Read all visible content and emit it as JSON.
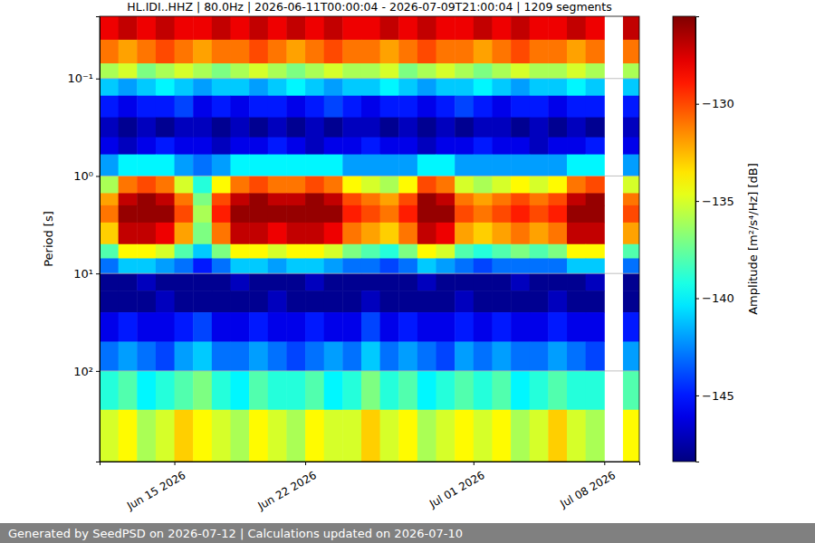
{
  "chart_data": {
    "type": "heatmap",
    "title": "HL.IDI..HHZ | 80.0Hz | 2026-06-11T00:00:04 - 2026-07-09T21:00:04 | 1209 segments",
    "footer": "Generated by SeedPSD on 2026-07-12 | Calculations updated on 2026-07-10",
    "y_label": "Period [s]",
    "colorbar_label": "Amplitude [m²/s⁴/Hz] [dB]",
    "log": "y",
    "grid": true,
    "xlim": [
      "2026-06-11T00:00:04",
      "2026-07-09T21:00:04"
    ],
    "xticks": [
      {
        "value": "2026-06-15",
        "label": "Jun 15 2026"
      },
      {
        "value": "2026-06-22",
        "label": "Jun 22 2026"
      },
      {
        "value": "2026-07-01",
        "label": "Jul 01 2026"
      },
      {
        "value": "2026-07-08",
        "label": "Jul 08 2026"
      }
    ],
    "ylim": [
      0.023,
      850
    ],
    "yticks": [
      {
        "value": 0.1,
        "label": "10⁻¹"
      },
      {
        "value": 1,
        "label": "10⁰"
      },
      {
        "value": 10,
        "label": "10¹"
      },
      {
        "value": 100,
        "label": "10²"
      }
    ],
    "colorbar_range": [
      -148.4,
      -125.5
    ],
    "colorbar_ticks": [
      {
        "value": -145,
        "label": "−145"
      },
      {
        "value": -140,
        "label": "−140"
      },
      {
        "value": -135,
        "label": "−135"
      },
      {
        "value": -130,
        "label": "−130"
      }
    ],
    "x": [
      "2026-06-11",
      "2026-06-12",
      "2026-06-13",
      "2026-06-14",
      "2026-06-15",
      "2026-06-16",
      "2026-06-17",
      "2026-06-18",
      "2026-06-19",
      "2026-06-20",
      "2026-06-21",
      "2026-06-22",
      "2026-06-23",
      "2026-06-24",
      "2026-06-25",
      "2026-06-26",
      "2026-06-27",
      "2026-06-28",
      "2026-06-29",
      "2026-06-30",
      "2026-07-01",
      "2026-07-02",
      "2026-07-03",
      "2026-07-04",
      "2026-07-05",
      "2026-07-06",
      "2026-07-07",
      "2026-07-08",
      "2026-07-09"
    ],
    "y": [
      0.023,
      0.04,
      0.07,
      0.1,
      0.15,
      0.25,
      0.4,
      0.6,
      1,
      1.5,
      2,
      3,
      5,
      7,
      10,
      15,
      25,
      50,
      100,
      250,
      850
    ],
    "cells": [
      [
        -128,
        -127,
        -128,
        -127,
        -128,
        -128,
        -127,
        -128,
        -127,
        -128,
        -127,
        -128,
        -127,
        -128,
        -128,
        -127,
        -128,
        -127,
        -128,
        -128,
        -127,
        -128,
        -127,
        -128,
        -128,
        -127,
        -128,
        null,
        -127
      ],
      [
        -131,
        -132,
        -131,
        -130,
        -131,
        -132,
        -131,
        -131,
        -130,
        -131,
        -132,
        -131,
        -130,
        -131,
        -131,
        -132,
        -131,
        -130,
        -131,
        -131,
        -132,
        -131,
        -130,
        -131,
        -131,
        -132,
        -131,
        null,
        -131
      ],
      [
        -136,
        -135,
        -137,
        -136,
        -135,
        -136,
        -137,
        -136,
        -135,
        -136,
        -137,
        -136,
        -135,
        -136,
        -136,
        -135,
        -137,
        -136,
        -135,
        -136,
        -137,
        -136,
        -135,
        -136,
        -136,
        -135,
        -136,
        null,
        -136
      ],
      [
        -141,
        -142,
        -141,
        -140,
        -141,
        -142,
        -141,
        -141,
        -142,
        -141,
        -140,
        -141,
        -142,
        -141,
        -141,
        -140,
        -141,
        -142,
        -141,
        -141,
        -140,
        -141,
        -142,
        -141,
        -141,
        -140,
        -141,
        null,
        -141
      ],
      [
        -145,
        -146,
        -145,
        -145,
        -144,
        -146,
        -145,
        -146,
        -145,
        -145,
        -146,
        -145,
        -144,
        -145,
        -146,
        -145,
        -145,
        -146,
        -145,
        -144,
        -145,
        -146,
        -145,
        -145,
        -146,
        -145,
        -145,
        null,
        -145
      ],
      [
        -147,
        -148,
        -147,
        -148,
        -147,
        -147,
        -148,
        -147,
        -148,
        -147,
        -148,
        -147,
        -148,
        -147,
        -147,
        -148,
        -147,
        -148,
        -147,
        -148,
        -147,
        -147,
        -148,
        -147,
        -148,
        -147,
        -148,
        null,
        -147
      ],
      [
        -146,
        -147,
        -146,
        -145,
        -146,
        -146,
        -147,
        -146,
        -146,
        -145,
        -146,
        -147,
        -146,
        -146,
        -145,
        -146,
        -146,
        -147,
        -146,
        -146,
        -145,
        -146,
        -146,
        -147,
        -146,
        -146,
        -145,
        null,
        -146
      ],
      [
        -142,
        -140,
        -140,
        -140,
        -142,
        -143,
        -142,
        -140,
        -140,
        -140,
        -140,
        -140,
        -140,
        -142,
        -142,
        -142,
        -142,
        -140,
        -140,
        -142,
        -142,
        -142,
        -142,
        -142,
        -142,
        -140,
        -140,
        null,
        -142
      ],
      [
        -136,
        -131,
        -130,
        -131,
        -135,
        -139,
        -134,
        -131,
        -130,
        -131,
        -131,
        -130,
        -131,
        -134,
        -135,
        -136,
        -134,
        -130,
        -131,
        -135,
        -136,
        -135,
        -134,
        -135,
        -134,
        -131,
        -130,
        null,
        -135
      ],
      [
        -132,
        -127,
        -126,
        -127,
        -131,
        -137,
        -130,
        -127,
        -126,
        -127,
        -127,
        -126,
        -127,
        -130,
        -131,
        -132,
        -130,
        -126,
        -127,
        -131,
        -132,
        -131,
        -130,
        -131,
        -130,
        -127,
        -126,
        null,
        -131
      ],
      [
        -131,
        -126,
        -126,
        -126,
        -130,
        -136,
        -129,
        -126,
        -126,
        -126,
        -126,
        -126,
        -126,
        -129,
        -130,
        -131,
        -129,
        -126,
        -126,
        -130,
        -131,
        -130,
        -129,
        -130,
        -129,
        -126,
        -126,
        null,
        -130
      ],
      [
        -133,
        -127,
        -127,
        -128,
        -132,
        -137,
        -131,
        -127,
        -127,
        -128,
        -127,
        -127,
        -128,
        -131,
        -132,
        -133,
        -131,
        -127,
        -128,
        -132,
        -133,
        -132,
        -131,
        -132,
        -131,
        -127,
        -127,
        null,
        -132
      ],
      [
        -138,
        -134,
        -134,
        -135,
        -138,
        -141,
        -137,
        -134,
        -134,
        -135,
        -134,
        -134,
        -135,
        -137,
        -138,
        -139,
        -137,
        -134,
        -135,
        -138,
        -139,
        -138,
        -137,
        -138,
        -137,
        -134,
        -134,
        null,
        -138
      ],
      [
        -143,
        -141,
        -141,
        -142,
        -143,
        -145,
        -143,
        -141,
        -141,
        -142,
        -141,
        -141,
        -142,
        -143,
        -143,
        -144,
        -143,
        -141,
        -142,
        -143,
        -144,
        -143,
        -143,
        -143,
        -143,
        -141,
        -141,
        null,
        -143
      ],
      [
        -148,
        -148,
        -147,
        -148,
        -148,
        -148,
        -148,
        -147,
        -148,
        -148,
        -148,
        -147,
        -148,
        -148,
        -148,
        -148,
        -148,
        -147,
        -148,
        -148,
        -148,
        -148,
        -147,
        -148,
        -148,
        -148,
        -147,
        null,
        -148
      ],
      [
        -148,
        -148,
        -148,
        -147,
        -148,
        -148,
        -148,
        -148,
        -148,
        -147,
        -148,
        -148,
        -148,
        -148,
        -147,
        -148,
        -148,
        -148,
        -148,
        -147,
        -148,
        -148,
        -148,
        -148,
        -147,
        -148,
        -148,
        null,
        -148
      ],
      [
        -146,
        -145,
        -146,
        -146,
        -145,
        -144,
        -146,
        -146,
        -145,
        -146,
        -146,
        -145,
        -146,
        -146,
        -144,
        -146,
        -145,
        -146,
        -146,
        -145,
        -146,
        -145,
        -146,
        -146,
        -145,
        -146,
        -146,
        null,
        -145
      ],
      [
        -143,
        -142,
        -143,
        -144,
        -142,
        -141,
        -143,
        -143,
        -142,
        -143,
        -144,
        -143,
        -142,
        -143,
        -141,
        -143,
        -142,
        -143,
        -144,
        -142,
        -143,
        -142,
        -143,
        -143,
        -142,
        -143,
        -144,
        null,
        -142
      ],
      [
        -139,
        -138,
        -140,
        -139,
        -138,
        -137,
        -139,
        -140,
        -138,
        -139,
        -139,
        -138,
        -140,
        -139,
        -137,
        -139,
        -138,
        -140,
        -139,
        -138,
        -139,
        -138,
        -140,
        -139,
        -138,
        -139,
        -139,
        null,
        -138
      ],
      [
        -135,
        -134,
        -136,
        -135,
        -133,
        -134,
        -135,
        -136,
        -134,
        -135,
        -136,
        -134,
        -135,
        -135,
        -133,
        -135,
        -134,
        -136,
        -135,
        -134,
        -135,
        -134,
        -136,
        -135,
        -133,
        -135,
        -136,
        null,
        -134
      ]
    ]
  }
}
